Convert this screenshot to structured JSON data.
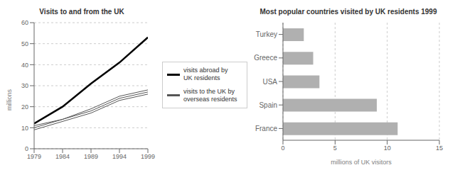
{
  "chart_data": [
    {
      "type": "line",
      "title": "Visits to and from the UK",
      "x": [
        1979,
        1984,
        1989,
        1994,
        1999
      ],
      "xlim": [
        1979,
        1999
      ],
      "xticks": [
        1979,
        1984,
        1989,
        1994,
        1999
      ],
      "ylabel": "millions",
      "ylim": [
        0,
        60
      ],
      "yticks": [
        0,
        10,
        20,
        30,
        40,
        50,
        60
      ],
      "grid": true,
      "legend": "right",
      "series": [
        {
          "name": "visits abroad by\nUK residents",
          "color": "#000000",
          "values": [
            12,
            20,
            31,
            41,
            53
          ]
        },
        {
          "color": "#555555",
          "values": [
            9,
            13,
            17,
            23,
            26
          ]
        },
        {
          "name": "visits to the UK by\noverseas residents",
          "color": "#555555",
          "values": [
            10,
            14,
            18,
            24,
            27
          ]
        },
        {
          "color": "#555555",
          "values": [
            11,
            14,
            19,
            25,
            28
          ]
        }
      ]
    },
    {
      "type": "bar",
      "orientation": "horizontal",
      "title": "Most popular countries visited by UK residents 1999",
      "categories": [
        "France",
        "Spain",
        "USA",
        "Greece",
        "Turkey"
      ],
      "values": [
        11.0,
        9.0,
        3.5,
        2.9,
        2.0
      ],
      "color": "#b0b0b0",
      "xlabel": "millions of UK visitors",
      "xlim": [
        0,
        15
      ],
      "xticks": [
        0,
        5,
        10,
        15
      ],
      "grid": true
    }
  ]
}
